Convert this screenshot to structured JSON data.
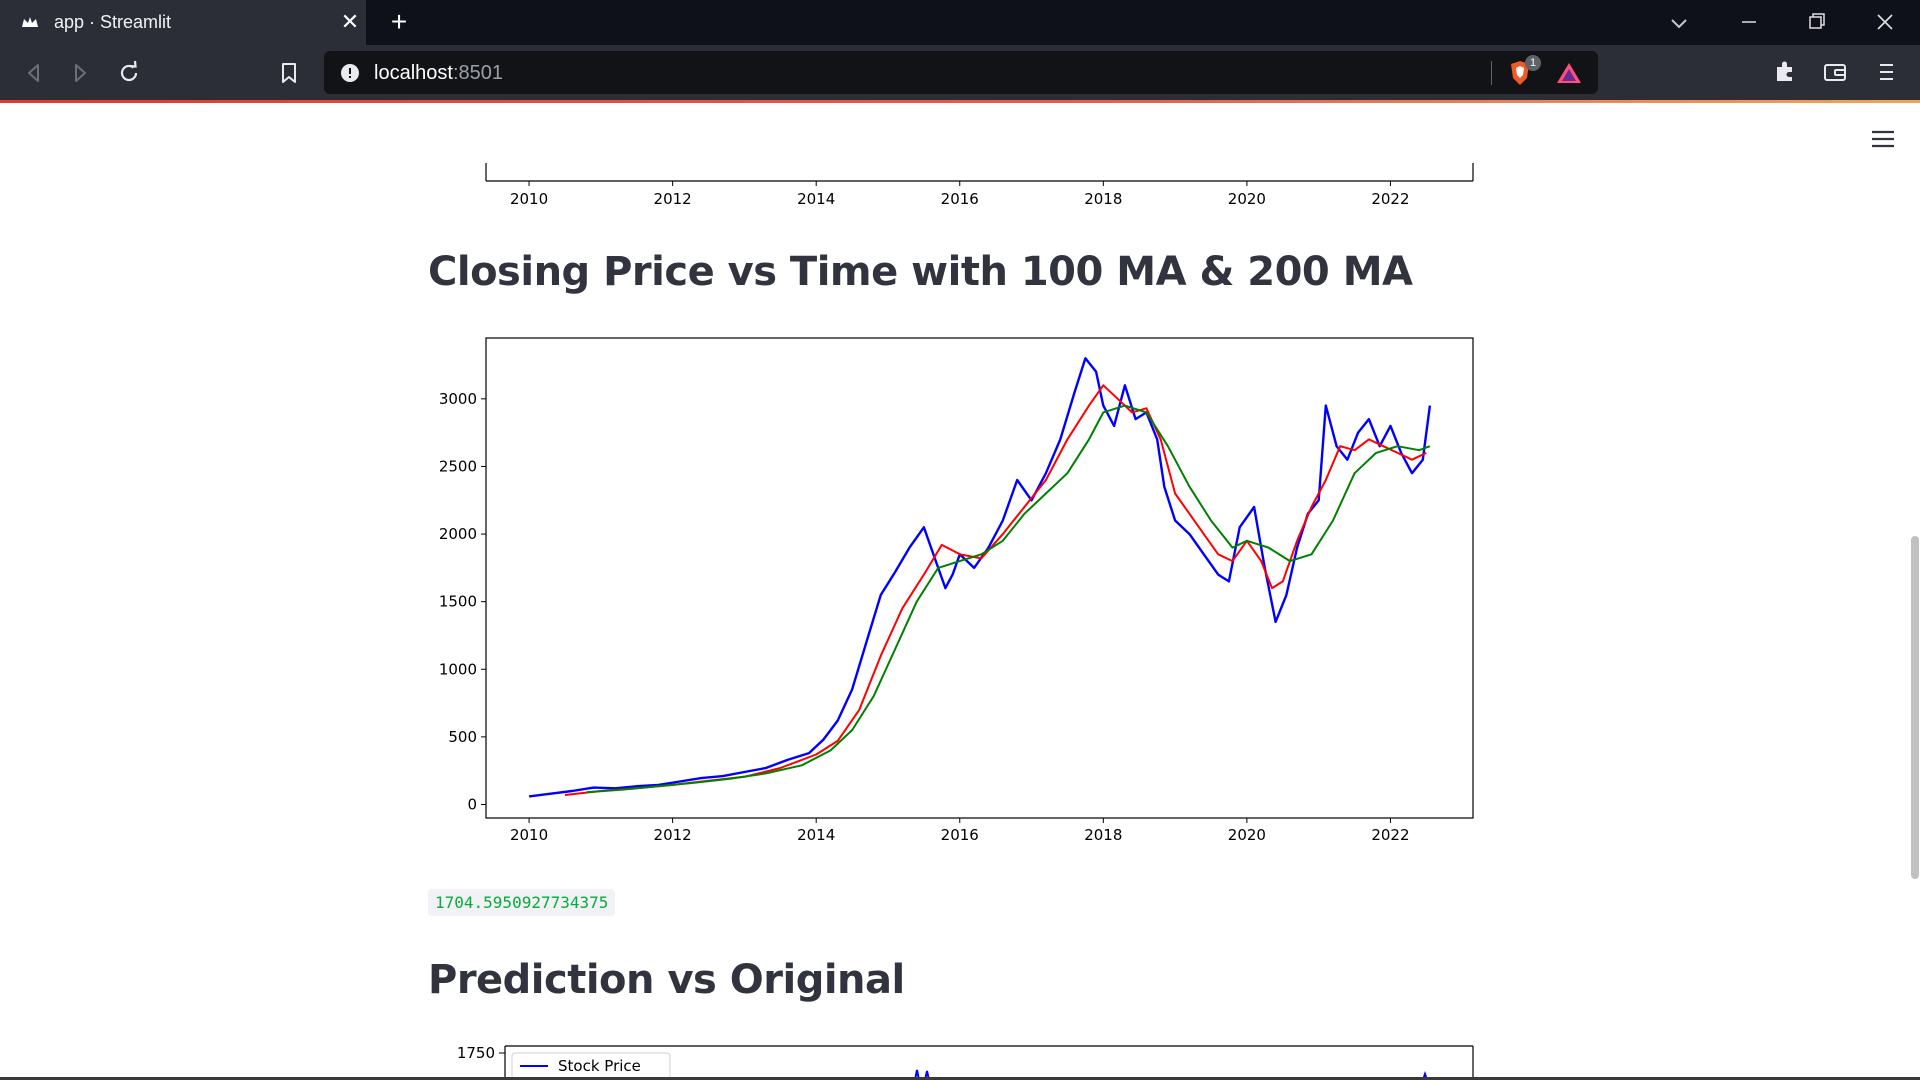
{
  "browser": {
    "tab_title": "app · Streamlit",
    "url_host": "localhost",
    "url_port": ":8501",
    "shield_badge": "1"
  },
  "page": {
    "heading_ma": "Closing Price vs Time with 100 MA & 200 MA",
    "output_value": "1704.5950927734375",
    "heading_pred": "Prediction vs Original"
  },
  "colors": {
    "price": "#0000ff",
    "ma100": "#ff0000",
    "ma200": "#008000",
    "output_text": "#09ab3b"
  },
  "chart_data": [
    {
      "type": "line",
      "note_visible": "bottom of previous chart (only x axis visible)",
      "x_ticks": [
        "2010",
        "2012",
        "2014",
        "2016",
        "2018",
        "2020",
        "2022"
      ]
    },
    {
      "type": "line",
      "x_ticks": [
        "2010",
        "2012",
        "2014",
        "2016",
        "2018",
        "2020",
        "2022"
      ],
      "y_ticks": [
        "0",
        "500",
        "1000",
        "1500",
        "2000",
        "2500",
        "3000"
      ],
      "xlim": [
        2009.4,
        2023.15
      ],
      "ylim": [
        -100,
        3450
      ],
      "series": [
        {
          "color": "#0000ff",
          "x": [
            2010.0,
            2010.3,
            2010.6,
            2010.9,
            2011.2,
            2011.5,
            2011.8,
            2012.1,
            2012.4,
            2012.7,
            2013.0,
            2013.3,
            2013.6,
            2013.9,
            2014.1,
            2014.3,
            2014.5,
            2014.7,
            2014.9,
            2015.1,
            2015.3,
            2015.5,
            2015.7,
            2015.8,
            2015.9,
            2016.0,
            2016.2,
            2016.4,
            2016.6,
            2016.8,
            2017.0,
            2017.2,
            2017.4,
            2017.6,
            2017.75,
            2017.9,
            2018.0,
            2018.15,
            2018.3,
            2018.45,
            2018.6,
            2018.75,
            2018.85,
            2019.0,
            2019.2,
            2019.4,
            2019.6,
            2019.75,
            2019.9,
            2020.1,
            2020.25,
            2020.4,
            2020.55,
            2020.7,
            2020.85,
            2021.0,
            2021.1,
            2021.25,
            2021.4,
            2021.55,
            2021.7,
            2021.85,
            2022.0,
            2022.15,
            2022.3,
            2022.45,
            2022.55
          ],
          "y": [
            60,
            80,
            100,
            125,
            120,
            135,
            145,
            170,
            195,
            210,
            240,
            270,
            330,
            380,
            480,
            620,
            850,
            1200,
            1550,
            1720,
            1900,
            2050,
            1750,
            1600,
            1700,
            1850,
            1750,
            1900,
            2100,
            2400,
            2250,
            2450,
            2700,
            3050,
            3300,
            3200,
            2950,
            2800,
            3100,
            2850,
            2900,
            2700,
            2350,
            2100,
            2000,
            1850,
            1700,
            1650,
            2050,
            2200,
            1750,
            1350,
            1550,
            1900,
            2150,
            2250,
            2950,
            2650,
            2550,
            2750,
            2850,
            2650,
            2800,
            2600,
            2450,
            2550,
            2950
          ]
        },
        {
          "color": "#ff0000",
          "x": [
            2010.5,
            2011.0,
            2011.5,
            2012.0,
            2012.5,
            2013.0,
            2013.5,
            2014.0,
            2014.3,
            2014.6,
            2014.9,
            2015.2,
            2015.5,
            2015.75,
            2016.0,
            2016.3,
            2016.6,
            2016.9,
            2017.2,
            2017.5,
            2017.8,
            2018.0,
            2018.2,
            2018.4,
            2018.6,
            2018.8,
            2019.0,
            2019.2,
            2019.4,
            2019.6,
            2019.8,
            2020.0,
            2020.2,
            2020.35,
            2020.5,
            2020.7,
            2020.9,
            2021.1,
            2021.3,
            2021.5,
            2021.7,
            2021.9,
            2022.1,
            2022.3,
            2022.5
          ],
          "y": [
            70,
            100,
            120,
            145,
            175,
            205,
            270,
            370,
            470,
            700,
            1100,
            1450,
            1700,
            1920,
            1850,
            1820,
            2000,
            2200,
            2400,
            2700,
            2950,
            3100,
            3000,
            2900,
            2930,
            2700,
            2300,
            2150,
            2000,
            1850,
            1800,
            1950,
            1800,
            1600,
            1650,
            1950,
            2200,
            2400,
            2650,
            2620,
            2700,
            2650,
            2600,
            2550,
            2600
          ]
        },
        {
          "color": "#008000",
          "x": [
            2010.8,
            2011.3,
            2011.8,
            2012.3,
            2012.8,
            2013.3,
            2013.8,
            2014.2,
            2014.5,
            2014.8,
            2015.1,
            2015.4,
            2015.7,
            2016.0,
            2016.3,
            2016.6,
            2016.9,
            2017.2,
            2017.5,
            2017.8,
            2018.0,
            2018.3,
            2018.6,
            2018.9,
            2019.2,
            2019.5,
            2019.8,
            2020.0,
            2020.3,
            2020.6,
            2020.9,
            2021.2,
            2021.5,
            2021.8,
            2022.1,
            2022.4,
            2022.55
          ],
          "y": [
            90,
            110,
            135,
            160,
            190,
            230,
            290,
            400,
            550,
            800,
            1150,
            1500,
            1750,
            1800,
            1850,
            1950,
            2150,
            2300,
            2450,
            2700,
            2900,
            2950,
            2900,
            2650,
            2350,
            2100,
            1900,
            1950,
            1900,
            1800,
            1850,
            2100,
            2450,
            2600,
            2650,
            2620,
            2650
          ]
        }
      ]
    },
    {
      "type": "line",
      "note_visible": "top of next chart",
      "y_ticks": [
        "1750"
      ],
      "legend": [
        "Stock Price"
      ],
      "legend_placement": "top-left"
    }
  ]
}
